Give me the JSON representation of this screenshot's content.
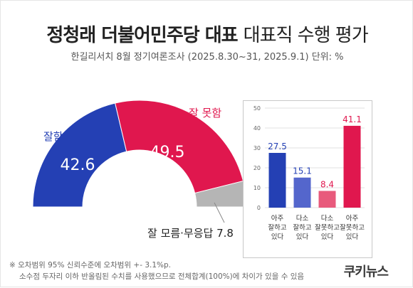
{
  "title_part1": "정청래 더불어민주당 대표",
  "title_part2": "대표직 수행 평가",
  "subtitle": "한길리서치 8월 정기여론조사 (2025.8.30~31, 2025.9.1) 단위: %",
  "donut": {
    "good_label": "잘함",
    "good_value": "42.6",
    "bad_label": "잘 못함",
    "bad_value": "49.5",
    "dk_label": "잘 모름·무응답 7.8"
  },
  "footnote_line1": "※ 오차범위 95% 신뢰수준에 오차범위 +- 3.1%p.",
  "footnote_line2": "소수점 두자리 이하 반올림된 수치를 사용했으므로 전체합계(100%)에 차이가 있을 수 있음",
  "brand": "쿠키뉴스",
  "colors": {
    "good": "#2440b4",
    "bad": "#e0174e",
    "dk": "#b5b5b5",
    "good_light": "#5466cc",
    "bad_light": "#e85a7c"
  },
  "chart_data": [
    {
      "type": "pie",
      "shape": "semicircle-donut",
      "categories": [
        "잘함",
        "잘 못함",
        "잘 모름·무응답"
      ],
      "values": [
        42.6,
        49.5,
        7.8
      ]
    },
    {
      "type": "bar",
      "categories": [
        "아주 잘하고 있다",
        "다소 잘하고 있다",
        "다소 잘못하고 있다",
        "아주 잘못하고 있다"
      ],
      "category_lines": [
        [
          "아주",
          "잘하고",
          "있다"
        ],
        [
          "다소",
          "잘하고",
          "있다"
        ],
        [
          "다소",
          "잘못하고",
          "있다"
        ],
        [
          "아주",
          "잘못하고",
          "있다"
        ]
      ],
      "values": [
        27.5,
        15.1,
        8.4,
        41.1
      ],
      "value_labels": [
        "27.5",
        "15.1",
        "8.4",
        "41.1"
      ],
      "ylim": [
        0,
        50
      ],
      "yticks": [
        0,
        10,
        20,
        30,
        40,
        50
      ],
      "grid": true
    }
  ]
}
